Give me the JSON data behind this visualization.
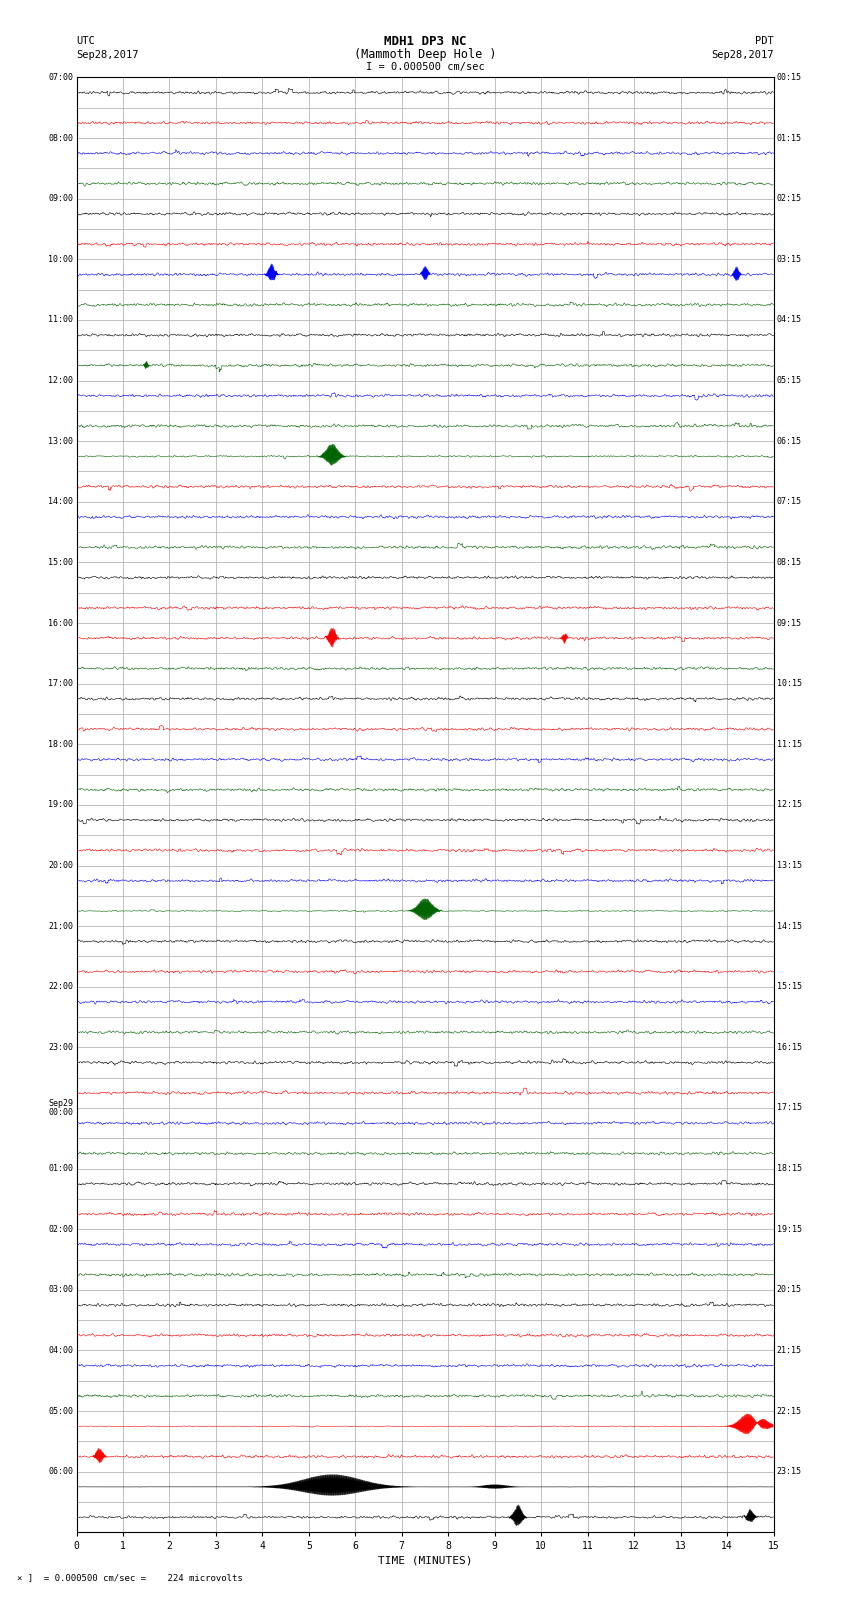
{
  "title_line1": "MDH1 DP3 NC",
  "title_line2": "(Mammoth Deep Hole )",
  "scale_label": "I = 0.000500 cm/sec",
  "left_label_top": "UTC",
  "left_label_date": "Sep28,2017",
  "right_label_top": "PDT",
  "right_label_date": "Sep28,2017",
  "bottom_label": "TIME (MINUTES)",
  "bottom_note": "= 0.000500 cm/sec =    224 microvolts",
  "left_times": [
    "07:00",
    "",
    "08:00",
    "",
    "09:00",
    "",
    "10:00",
    "",
    "11:00",
    "",
    "12:00",
    "",
    "13:00",
    "",
    "14:00",
    "",
    "15:00",
    "",
    "16:00",
    "",
    "17:00",
    "",
    "18:00",
    "",
    "19:00",
    "",
    "20:00",
    "",
    "21:00",
    "",
    "22:00",
    "",
    "23:00",
    "",
    "Sep29\n00:00",
    "",
    "01:00",
    "",
    "02:00",
    "",
    "03:00",
    "",
    "04:00",
    "",
    "05:00",
    "",
    "06:00",
    ""
  ],
  "right_times": [
    "00:15",
    "",
    "01:15",
    "",
    "02:15",
    "",
    "03:15",
    "",
    "04:15",
    "",
    "05:15",
    "",
    "06:15",
    "",
    "07:15",
    "",
    "08:15",
    "",
    "09:15",
    "",
    "10:15",
    "",
    "11:15",
    "",
    "12:15",
    "",
    "13:15",
    "",
    "14:15",
    "",
    "15:15",
    "",
    "16:15",
    "",
    "17:15",
    "",
    "18:15",
    "",
    "19:15",
    "",
    "20:15",
    "",
    "21:15",
    "",
    "22:15",
    "",
    "23:15",
    ""
  ],
  "num_rows": 48,
  "x_min": 0,
  "x_max": 15,
  "background_color": "#ffffff",
  "grid_color": "#aaaaaa",
  "figwidth": 8.5,
  "figheight": 16.13
}
